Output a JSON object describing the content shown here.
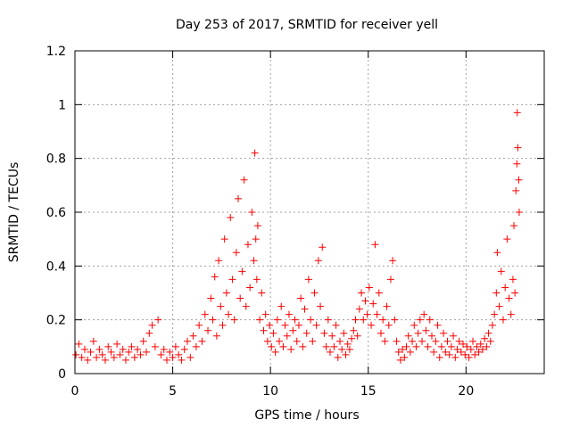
{
  "chart_data": {
    "type": "scatter",
    "title": "Day 253 of 2017, SRMTID for receiver yell",
    "xlabel": "GPS time / hours",
    "ylabel": "SRMTID / TECUs",
    "xlim": [
      0,
      24
    ],
    "ylim": [
      0,
      1.2
    ],
    "grid": true,
    "x_ticks": [
      0,
      5,
      10,
      15,
      20
    ],
    "x_tick_labels": [
      "0",
      "5",
      "10",
      "15",
      "20"
    ],
    "y_ticks": [
      0,
      0.2,
      0.4,
      0.6,
      0.8,
      1,
      1.2
    ],
    "y_tick_labels": [
      "0",
      "0.2",
      "0.4",
      "0.6",
      "0.8",
      "1",
      "1.2"
    ],
    "marker": "plus",
    "series": [
      {
        "name": "SRMTID",
        "color": "#ff0000",
        "points": [
          [
            0.05,
            0.07
          ],
          [
            0.2,
            0.11
          ],
          [
            0.35,
            0.06
          ],
          [
            0.5,
            0.09
          ],
          [
            0.65,
            0.05
          ],
          [
            0.8,
            0.08
          ],
          [
            0.95,
            0.12
          ],
          [
            1.1,
            0.06
          ],
          [
            1.25,
            0.09
          ],
          [
            1.4,
            0.07
          ],
          [
            1.55,
            0.05
          ],
          [
            1.7,
            0.1
          ],
          [
            1.85,
            0.08
          ],
          [
            2.0,
            0.06
          ],
          [
            2.15,
            0.11
          ],
          [
            2.3,
            0.07
          ],
          [
            2.45,
            0.09
          ],
          [
            2.6,
            0.05
          ],
          [
            2.75,
            0.08
          ],
          [
            2.9,
            0.1
          ],
          [
            3.05,
            0.06
          ],
          [
            3.2,
            0.09
          ],
          [
            3.35,
            0.07
          ],
          [
            3.5,
            0.12
          ],
          [
            3.65,
            0.08
          ],
          [
            3.8,
            0.15
          ],
          [
            3.95,
            0.18
          ],
          [
            4.1,
            0.1
          ],
          [
            4.25,
            0.2
          ],
          [
            4.4,
            0.07
          ],
          [
            4.55,
            0.09
          ],
          [
            4.7,
            0.05
          ],
          [
            4.85,
            0.08
          ],
          [
            5.0,
            0.06
          ],
          [
            5.15,
            0.1
          ],
          [
            5.3,
            0.07
          ],
          [
            5.45,
            0.05
          ],
          [
            5.6,
            0.09
          ],
          [
            5.75,
            0.12
          ],
          [
            5.9,
            0.06
          ],
          [
            6.05,
            0.14
          ],
          [
            6.2,
            0.1
          ],
          [
            6.35,
            0.18
          ],
          [
            6.5,
            0.12
          ],
          [
            6.65,
            0.22
          ],
          [
            6.8,
            0.16
          ],
          [
            6.95,
            0.28
          ],
          [
            7.05,
            0.2
          ],
          [
            7.15,
            0.36
          ],
          [
            7.25,
            0.14
          ],
          [
            7.35,
            0.42
          ],
          [
            7.45,
            0.25
          ],
          [
            7.55,
            0.18
          ],
          [
            7.65,
            0.5
          ],
          [
            7.75,
            0.3
          ],
          [
            7.85,
            0.22
          ],
          [
            7.95,
            0.58
          ],
          [
            8.05,
            0.35
          ],
          [
            8.15,
            0.2
          ],
          [
            8.25,
            0.45
          ],
          [
            8.35,
            0.65
          ],
          [
            8.45,
            0.28
          ],
          [
            8.55,
            0.38
          ],
          [
            8.65,
            0.72
          ],
          [
            8.75,
            0.25
          ],
          [
            8.85,
            0.48
          ],
          [
            8.95,
            0.32
          ],
          [
            9.05,
            0.6
          ],
          [
            9.15,
            0.42
          ],
          [
            9.2,
            0.82
          ],
          [
            9.25,
            0.5
          ],
          [
            9.3,
            0.35
          ],
          [
            9.35,
            0.55
          ],
          [
            9.45,
            0.2
          ],
          [
            9.55,
            0.3
          ],
          [
            9.65,
            0.16
          ],
          [
            9.75,
            0.22
          ],
          [
            9.85,
            0.12
          ],
          [
            9.95,
            0.18
          ],
          [
            10.05,
            0.1
          ],
          [
            10.15,
            0.15
          ],
          [
            10.25,
            0.08
          ],
          [
            10.35,
            0.2
          ],
          [
            10.45,
            0.12
          ],
          [
            10.55,
            0.25
          ],
          [
            10.65,
            0.1
          ],
          [
            10.75,
            0.18
          ],
          [
            10.85,
            0.14
          ],
          [
            10.95,
            0.22
          ],
          [
            11.05,
            0.09
          ],
          [
            11.15,
            0.16
          ],
          [
            11.25,
            0.2
          ],
          [
            11.35,
            0.12
          ],
          [
            11.45,
            0.18
          ],
          [
            11.55,
            0.28
          ],
          [
            11.65,
            0.1
          ],
          [
            11.75,
            0.24
          ],
          [
            11.85,
            0.15
          ],
          [
            11.95,
            0.35
          ],
          [
            12.05,
            0.2
          ],
          [
            12.15,
            0.12
          ],
          [
            12.25,
            0.3
          ],
          [
            12.35,
            0.18
          ],
          [
            12.45,
            0.42
          ],
          [
            12.55,
            0.25
          ],
          [
            12.65,
            0.47
          ],
          [
            12.75,
            0.15
          ],
          [
            12.85,
            0.1
          ],
          [
            12.95,
            0.2
          ],
          [
            13.05,
            0.08
          ],
          [
            13.15,
            0.14
          ],
          [
            13.25,
            0.1
          ],
          [
            13.35,
            0.18
          ],
          [
            13.45,
            0.06
          ],
          [
            13.55,
            0.12
          ],
          [
            13.65,
            0.09
          ],
          [
            13.75,
            0.15
          ],
          [
            13.85,
            0.07
          ],
          [
            13.95,
            0.11
          ],
          [
            14.05,
            0.09
          ],
          [
            14.15,
            0.13
          ],
          [
            14.25,
            0.16
          ],
          [
            14.35,
            0.2
          ],
          [
            14.45,
            0.14
          ],
          [
            14.55,
            0.24
          ],
          [
            14.65,
            0.3
          ],
          [
            14.75,
            0.2
          ],
          [
            14.85,
            0.27
          ],
          [
            14.95,
            0.22
          ],
          [
            15.05,
            0.32
          ],
          [
            15.15,
            0.18
          ],
          [
            15.25,
            0.26
          ],
          [
            15.35,
            0.48
          ],
          [
            15.45,
            0.22
          ],
          [
            15.55,
            0.3
          ],
          [
            15.65,
            0.15
          ],
          [
            15.75,
            0.2
          ],
          [
            15.85,
            0.12
          ],
          [
            15.95,
            0.25
          ],
          [
            16.05,
            0.18
          ],
          [
            16.15,
            0.35
          ],
          [
            16.25,
            0.42
          ],
          [
            16.35,
            0.2
          ],
          [
            16.45,
            0.12
          ],
          [
            16.55,
            0.08
          ],
          [
            16.65,
            0.05
          ],
          [
            16.75,
            0.09
          ],
          [
            16.85,
            0.06
          ],
          [
            16.95,
            0.1
          ],
          [
            17.05,
            0.14
          ],
          [
            17.15,
            0.08
          ],
          [
            17.25,
            0.12
          ],
          [
            17.35,
            0.18
          ],
          [
            17.45,
            0.1
          ],
          [
            17.55,
            0.15
          ],
          [
            17.65,
            0.2
          ],
          [
            17.75,
            0.12
          ],
          [
            17.85,
            0.22
          ],
          [
            17.95,
            0.16
          ],
          [
            18.05,
            0.1
          ],
          [
            18.15,
            0.2
          ],
          [
            18.25,
            0.14
          ],
          [
            18.35,
            0.08
          ],
          [
            18.45,
            0.12
          ],
          [
            18.55,
            0.18
          ],
          [
            18.65,
            0.06
          ],
          [
            18.75,
            0.1
          ],
          [
            18.85,
            0.15
          ],
          [
            18.95,
            0.08
          ],
          [
            19.05,
            0.12
          ],
          [
            19.15,
            0.07
          ],
          [
            19.25,
            0.1
          ],
          [
            19.35,
            0.14
          ],
          [
            19.45,
            0.06
          ],
          [
            19.55,
            0.09
          ],
          [
            19.65,
            0.12
          ],
          [
            19.75,
            0.08
          ],
          [
            19.85,
            0.11
          ],
          [
            19.95,
            0.07
          ],
          [
            20.05,
            0.1
          ],
          [
            20.15,
            0.06
          ],
          [
            20.25,
            0.09
          ],
          [
            20.35,
            0.12
          ],
          [
            20.45,
            0.07
          ],
          [
            20.55,
            0.1
          ],
          [
            20.65,
            0.08
          ],
          [
            20.75,
            0.11
          ],
          [
            20.85,
            0.09
          ],
          [
            20.95,
            0.13
          ],
          [
            21.05,
            0.1
          ],
          [
            21.15,
            0.15
          ],
          [
            21.25,
            0.12
          ],
          [
            21.35,
            0.18
          ],
          [
            21.45,
            0.22
          ],
          [
            21.55,
            0.3
          ],
          [
            21.6,
            0.45
          ],
          [
            21.7,
            0.25
          ],
          [
            21.8,
            0.38
          ],
          [
            21.9,
            0.2
          ],
          [
            22.0,
            0.32
          ],
          [
            22.1,
            0.5
          ],
          [
            22.2,
            0.28
          ],
          [
            22.3,
            0.22
          ],
          [
            22.4,
            0.35
          ],
          [
            22.45,
            0.55
          ],
          [
            22.5,
            0.3
          ],
          [
            22.55,
            0.68
          ],
          [
            22.6,
            0.78
          ],
          [
            22.62,
            0.97
          ],
          [
            22.65,
            0.84
          ],
          [
            22.7,
            0.72
          ],
          [
            22.72,
            0.6
          ]
        ]
      }
    ]
  }
}
